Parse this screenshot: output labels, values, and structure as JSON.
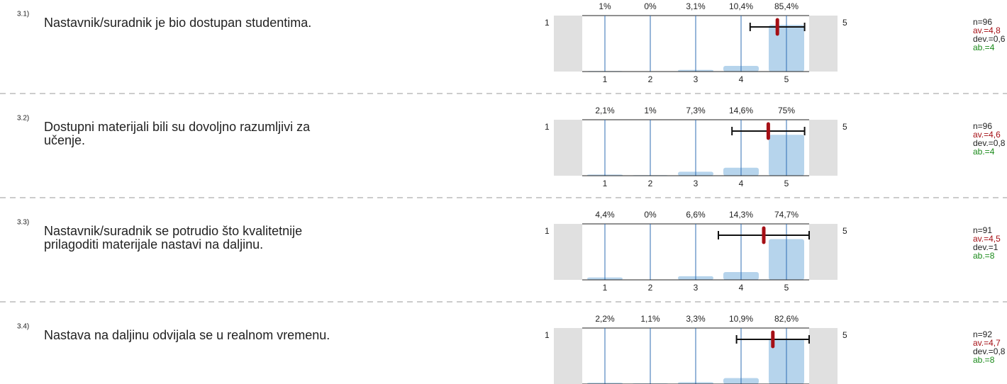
{
  "xlim": [
    1,
    5
  ],
  "ylim": [
    0,
    100
  ],
  "items": [
    {
      "number": "3.1)",
      "question_lines": [
        "Nastavnik/suradnik je bio dostupan studentima."
      ],
      "left_label": "1",
      "right_label": "5",
      "categories": [
        "1",
        "2",
        "3",
        "4",
        "5"
      ],
      "values": [
        1,
        0,
        3.1,
        10.4,
        85.4
      ],
      "value_labels": [
        "1%",
        "0%",
        "3,1%",
        "10,4%",
        "85,4%"
      ],
      "n": "n=96",
      "av": {
        "value": 4.8,
        "label": "av.=4,8"
      },
      "dev": {
        "value": 0.6,
        "label": "dev.=0,6"
      },
      "ab": "ab.=4"
    },
    {
      "number": "3.2)",
      "question_lines": [
        "Dostupni materijali bili su dovoljno razumljivi za",
        "učenje."
      ],
      "left_label": "1",
      "right_label": "5",
      "categories": [
        "1",
        "2",
        "3",
        "4",
        "5"
      ],
      "values": [
        2.1,
        1,
        7.3,
        14.6,
        75
      ],
      "value_labels": [
        "2,1%",
        "1%",
        "7,3%",
        "14,6%",
        "75%"
      ],
      "n": "n=96",
      "av": {
        "value": 4.6,
        "label": "av.=4,6"
      },
      "dev": {
        "value": 0.8,
        "label": "dev.=0,8"
      },
      "ab": "ab.=4"
    },
    {
      "number": "3.3)",
      "question_lines": [
        "Nastavnik/suradnik se potrudio što kvalitetnije",
        "prilagoditi materijale nastavi na daljinu."
      ],
      "left_label": "1",
      "right_label": "5",
      "categories": [
        "1",
        "2",
        "3",
        "4",
        "5"
      ],
      "values": [
        4.4,
        0,
        6.6,
        14.3,
        74.7
      ],
      "value_labels": [
        "4,4%",
        "0%",
        "6,6%",
        "14,3%",
        "74,7%"
      ],
      "n": "n=91",
      "av": {
        "value": 4.5,
        "label": "av.=4,5"
      },
      "dev": {
        "value": 1,
        "label": "dev.=1"
      },
      "ab": "ab.=8"
    },
    {
      "number": "3.4)",
      "question_lines": [
        "Nastava na daljinu odvijala se u realnom vremenu."
      ],
      "left_label": "1",
      "right_label": "5",
      "values": [
        2.2,
        1.1,
        3.3,
        10.9,
        82.6
      ],
      "value_labels": [
        "2,2%",
        "1,1%",
        "3,3%",
        "10,9%",
        "82,6%"
      ],
      "n": "n=92",
      "av": {
        "value": 4.7,
        "label": "av.=4,7"
      },
      "dev": {
        "value": 0.8,
        "label": "dev.=0,8"
      },
      "ab": "ab.=8"
    }
  ]
}
